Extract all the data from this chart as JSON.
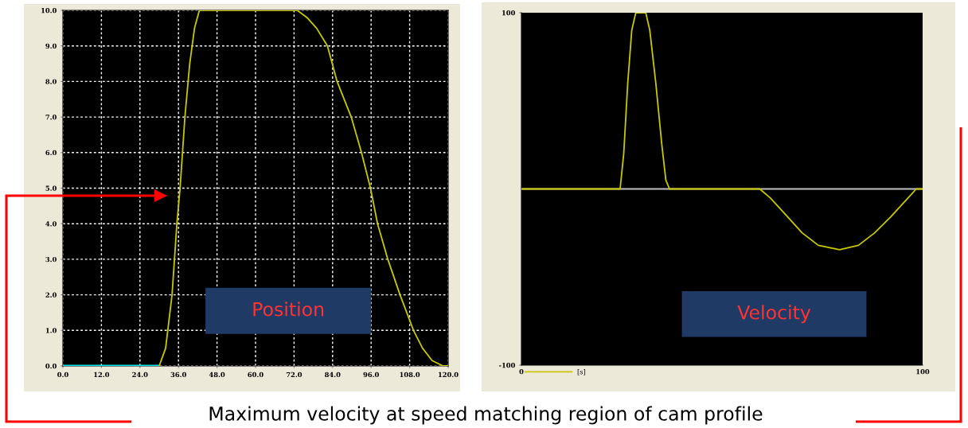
{
  "chart_data": [
    {
      "type": "line",
      "xlim": [
        0,
        120
      ],
      "ylim": [
        0,
        10
      ],
      "xticks": [
        {
          "value": 0,
          "label": "0.0"
        },
        {
          "value": 12,
          "label": "12.0"
        },
        {
          "value": 24,
          "label": "24.0"
        },
        {
          "value": 36,
          "label": "36.0"
        },
        {
          "value": 48,
          "label": "48.0"
        },
        {
          "value": 60,
          "label": "60.0"
        },
        {
          "value": 72,
          "label": "72.0"
        },
        {
          "value": 84,
          "label": "84.0"
        },
        {
          "value": 96,
          "label": "96.0"
        },
        {
          "value": 108,
          "label": "108.0"
        },
        {
          "value": 120,
          "label": "120.0"
        }
      ],
      "yticks": [
        {
          "value": 0,
          "label": "0.0"
        },
        {
          "value": 1,
          "label": "1.0"
        },
        {
          "value": 2,
          "label": "2.0"
        },
        {
          "value": 3,
          "label": "3.0"
        },
        {
          "value": 4,
          "label": "4.0"
        },
        {
          "value": 5,
          "label": "5.0"
        },
        {
          "value": 6,
          "label": "6.0"
        },
        {
          "value": 7,
          "label": "7.0"
        },
        {
          "value": 8,
          "label": "8.0"
        },
        {
          "value": 9,
          "label": "9.0"
        },
        {
          "value": 10,
          "label": "10.0"
        }
      ],
      "grid": true,
      "legend": false,
      "series": [
        {
          "color": "#00e5ee",
          "x": [
            0,
            30
          ],
          "values": [
            0,
            0
          ]
        },
        {
          "color": "#c8c800",
          "x": [
            30,
            32,
            34,
            35.5,
            36.5,
            38,
            39.5,
            41,
            42.5,
            73,
            76,
            79,
            82.4,
            85.4,
            89.8,
            93,
            95.8,
            98,
            101.2,
            105,
            109.2,
            112,
            115,
            118.4,
            120
          ],
          "values": [
            0,
            0.5,
            2,
            4,
            5,
            7,
            8.5,
            9.5,
            10,
            10,
            9.8,
            9.5,
            9,
            8,
            7,
            6,
            5,
            4,
            3,
            2,
            1,
            0.5,
            0.15,
            0,
            0
          ]
        }
      ],
      "annotations": [
        "Position",
        "Maximum velocity at speed matching region of cam profile"
      ]
    },
    {
      "type": "line",
      "xlim": [
        0,
        100
      ],
      "ylim": [
        -100,
        100
      ],
      "xticks": [
        0,
        100
      ],
      "yticks": [
        -100,
        100
      ],
      "grid": false,
      "legend": "bottom left",
      "ref_lines": [
        {
          "axis": "y",
          "value": 0,
          "color": "#c0c0c0"
        }
      ],
      "series": [
        {
          "name": "[s]",
          "color": "#c8c800",
          "x": [
            0,
            24.6,
            25.5,
            26.5,
            27.5,
            28.5,
            31,
            32,
            33.5,
            35,
            36,
            36.9,
            59.4,
            62,
            66,
            70,
            74,
            79.3,
            84,
            88,
            92,
            96,
            98.4,
            100
          ],
          "values": [
            0,
            0,
            20,
            60,
            90,
            100,
            100,
            90,
            60,
            25,
            5,
            0,
            0,
            -5,
            -15,
            -25,
            -32,
            -34.5,
            -32,
            -25,
            -16,
            -6,
            0,
            0
          ]
        }
      ],
      "annotations": [
        "Velocity"
      ]
    }
  ]
}
